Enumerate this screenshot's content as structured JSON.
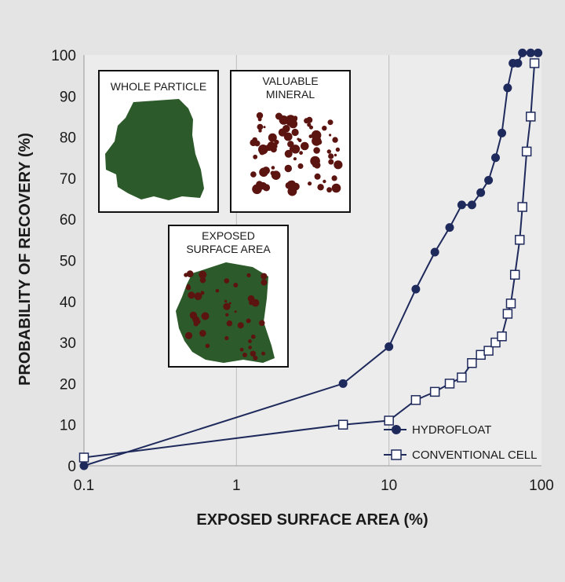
{
  "chart_data": {
    "type": "line",
    "xscale": "log",
    "xlabel": "EXPOSED SURFACE AREA (%)",
    "ylabel": "PROBABILITY OF RECOVERY (%)",
    "xlim": [
      0.1,
      100
    ],
    "ylim": [
      0,
      100
    ],
    "xticks": [
      "0.1",
      "1",
      "10",
      "100"
    ],
    "yticks": [
      "0",
      "10",
      "20",
      "30",
      "40",
      "50",
      "60",
      "70",
      "80",
      "90",
      "100"
    ],
    "grid": "vertical lines at decades",
    "legend": "bottom-right",
    "series": [
      {
        "name": "HYDROFLOAT",
        "marker": "filled-circle",
        "color": "#1f2a5c",
        "x": [
          0.1,
          5,
          10,
          15,
          20,
          25,
          30,
          35,
          40,
          45,
          50,
          55,
          60,
          65,
          70,
          75,
          85,
          95
        ],
        "y": [
          0,
          20,
          29,
          43,
          52,
          58,
          63.5,
          63.5,
          66.5,
          69.5,
          75,
          81,
          92,
          98,
          98,
          100.5,
          100.5,
          100.5
        ]
      },
      {
        "name": "CONVENTIONAL CELL",
        "marker": "open-square",
        "color": "#1f2a5c",
        "x": [
          0.1,
          5,
          10,
          15,
          20,
          25,
          30,
          35,
          40,
          45,
          50,
          55,
          60,
          63,
          67,
          72,
          75,
          80,
          85,
          90
        ],
        "y": [
          2,
          10,
          11,
          16,
          18,
          20,
          21.5,
          25,
          27,
          28,
          30,
          31.5,
          37,
          39.5,
          46.5,
          55,
          63,
          76.5,
          85,
          98
        ]
      }
    ],
    "insets": [
      {
        "title_lines": [
          "WHOLE PARTICLE"
        ]
      },
      {
        "title_lines": [
          "VALUABLE",
          "MINERAL"
        ]
      },
      {
        "title_lines": [
          "EXPOSED",
          "SURFACE AREA"
        ]
      }
    ]
  }
}
